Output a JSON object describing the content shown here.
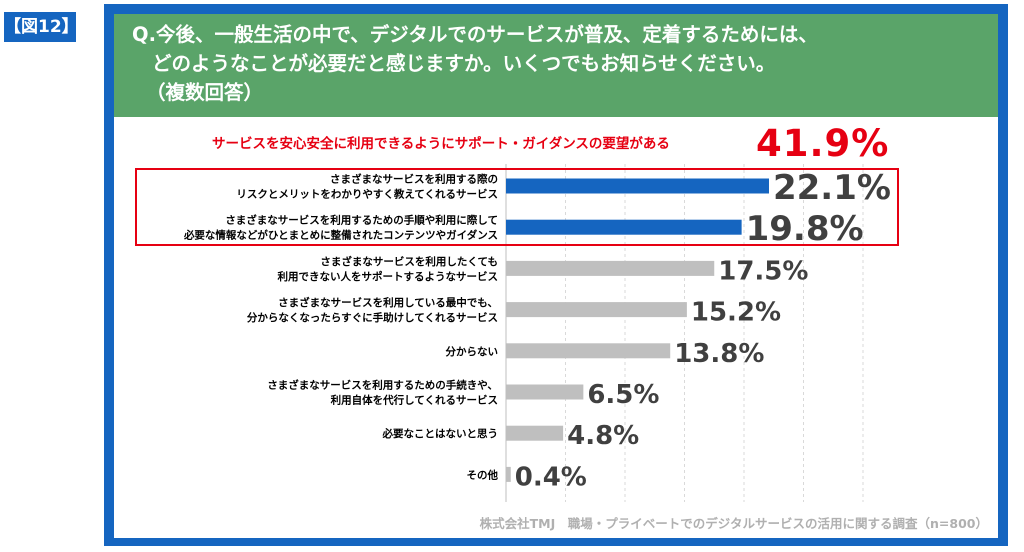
{
  "figure_tag": "【図12】",
  "question": {
    "line1": "Q.今後、一般生活の中で、デジタルでのサービスが普及、定着するためには、",
    "line2": "どのようなことが必要だと感じますか。いくつでもお知らせください。",
    "line3": "（複数回答）"
  },
  "summary": {
    "label": "サービスを安心安全に利用できるようにサポート・ガイダンスの要望がある",
    "value": "41.9%",
    "color": "#e60012"
  },
  "footnote": "株式会社TMJ　職場・プライベートでのデジタルサービスの活用に関する調査（n=800）",
  "colors": {
    "frame": "#1565c0",
    "header": "#5aa469",
    "highlight_bar": "#1565c0",
    "bar": "#bfbfbf",
    "accent": "#e60012",
    "value_text": "#404040"
  },
  "chart_data": {
    "type": "bar",
    "orientation": "horizontal",
    "categories": [
      [
        "さまざまなサービスを利用する際の",
        "リスクとメリットをわかりやすく教えてくれるサービス"
      ],
      [
        "さまざまなサービスを利用するための手順や利用に際して",
        "必要な情報などがひとまとめに整備されたコンテンツやガイダンス"
      ],
      [
        "さまざまなサービスを利用したくても",
        "利用できない人をサポートするようなサービス"
      ],
      [
        "さまざまなサービスを利用している最中でも、",
        "分からなくなったらすぐに手助けしてくれるサービス"
      ],
      [
        "分からない"
      ],
      [
        "さまざまなサービスを利用するための手続きや、",
        "利用自体を代行してくれるサービス"
      ],
      [
        "必要なことはないと思う"
      ],
      [
        "その他"
      ]
    ],
    "values": [
      22.1,
      19.8,
      17.5,
      15.2,
      13.8,
      6.5,
      4.8,
      0.4
    ],
    "value_labels": [
      "22.1%",
      "19.8%",
      "17.5%",
      "15.2%",
      "13.8%",
      "6.5%",
      "4.8%",
      "0.4%"
    ],
    "highlighted": [
      true,
      true,
      false,
      false,
      false,
      false,
      false,
      false
    ],
    "xlim": [
      0,
      30
    ],
    "grid": "vertical dashed",
    "legend": "none"
  }
}
